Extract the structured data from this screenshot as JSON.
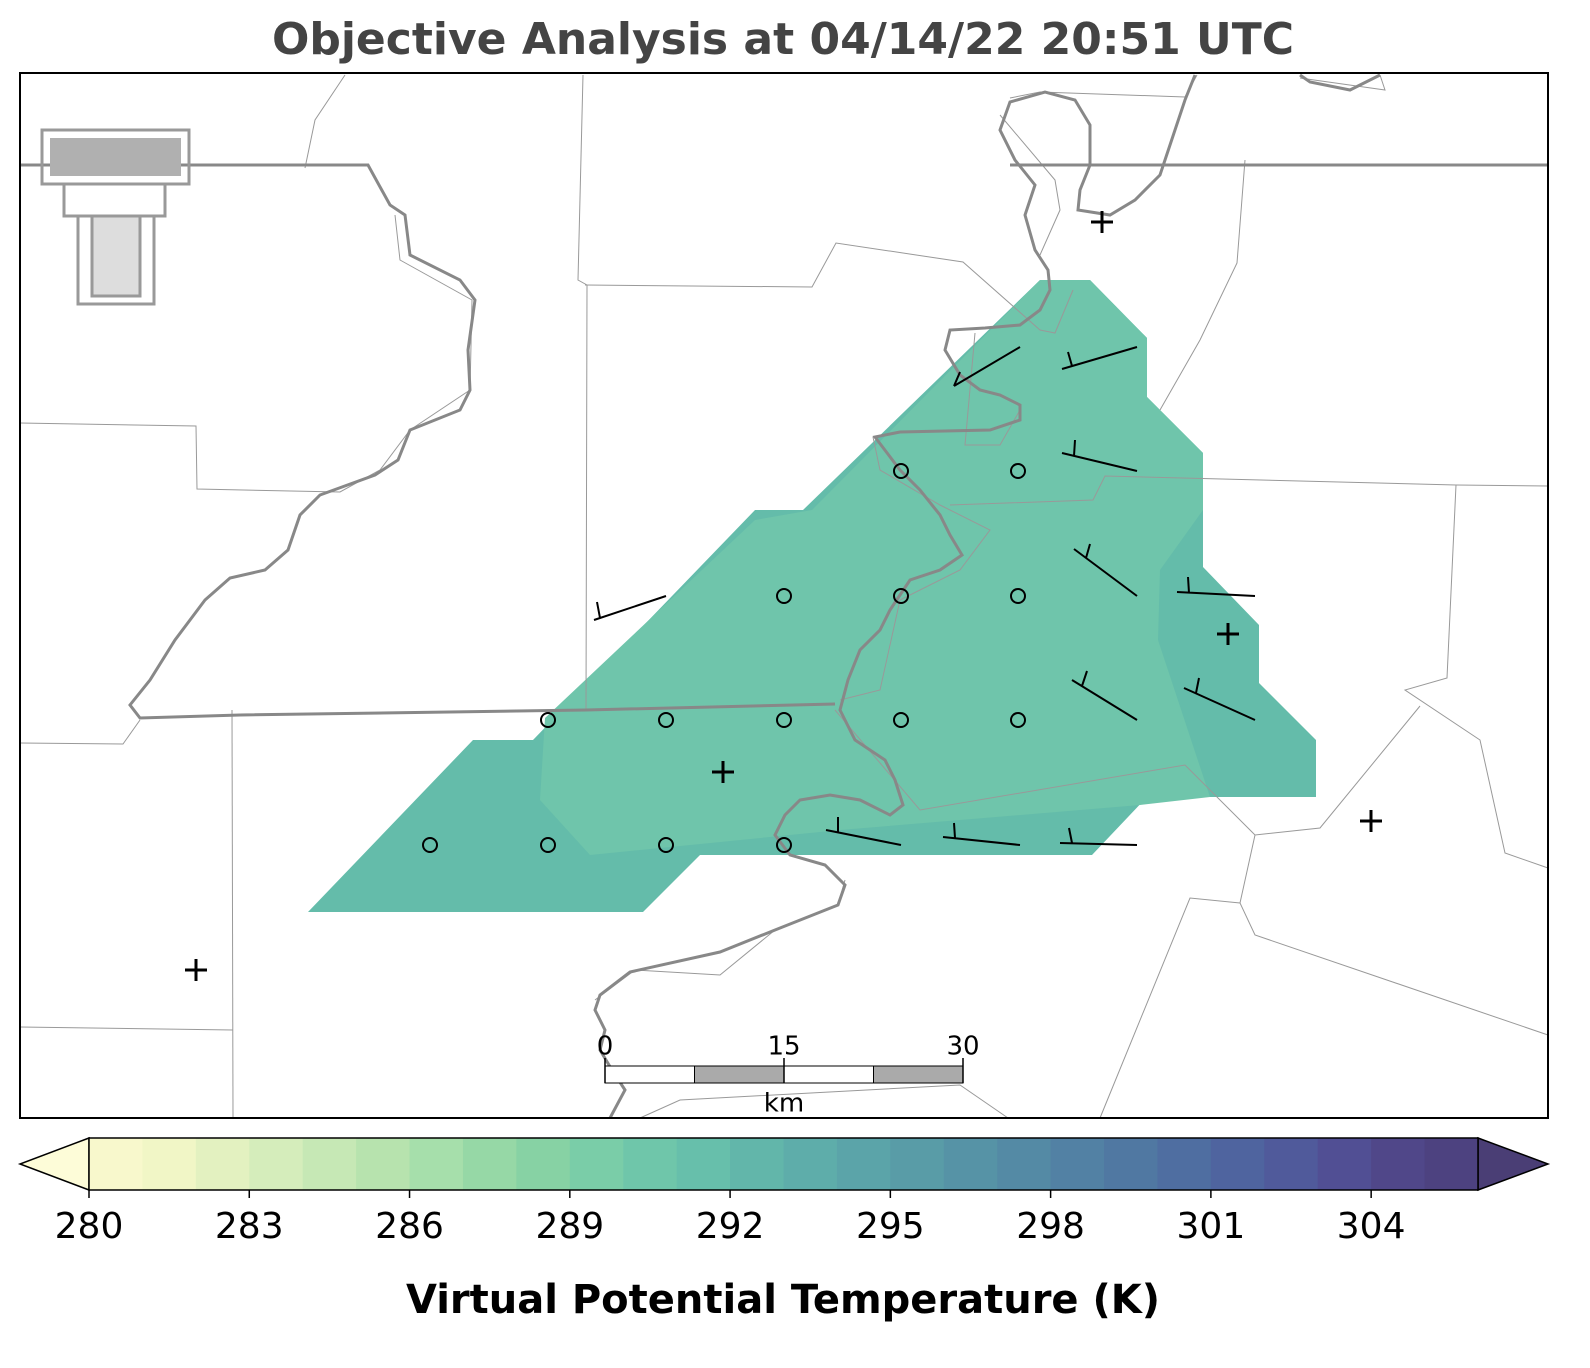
{
  "title": "Objective Analysis at 04/14/22 20:51 UTC",
  "colorbar": {
    "label": "Virtual Potential Temperature (K)",
    "lim": [
      280,
      306
    ],
    "ticks": [
      280,
      283,
      286,
      289,
      292,
      295,
      298,
      301,
      304
    ],
    "colors": [
      "#f8f8cc",
      "#f1f6c6",
      "#e3f1c0",
      "#d5edbb",
      "#c6e8b5",
      "#b7e3ae",
      "#a6dfab",
      "#96d8a6",
      "#87d2a4",
      "#7acda8",
      "#6fc6aa",
      "#67bfab",
      "#62b6aa",
      "#5eadaa",
      "#5ba4a9",
      "#599ca7",
      "#5693a6",
      "#548aa5",
      "#5281a4",
      "#5078a2",
      "#4f6ea1",
      "#4f649f",
      "#505a9b",
      "#514f94",
      "#504789",
      "#4d4280"
    ],
    "extend_colors": [
      "#fdfcd8",
      "#4a3e75"
    ]
  },
  "scale_bar": {
    "ticks": [
      0,
      15,
      30
    ],
    "unit": "km"
  }
}
